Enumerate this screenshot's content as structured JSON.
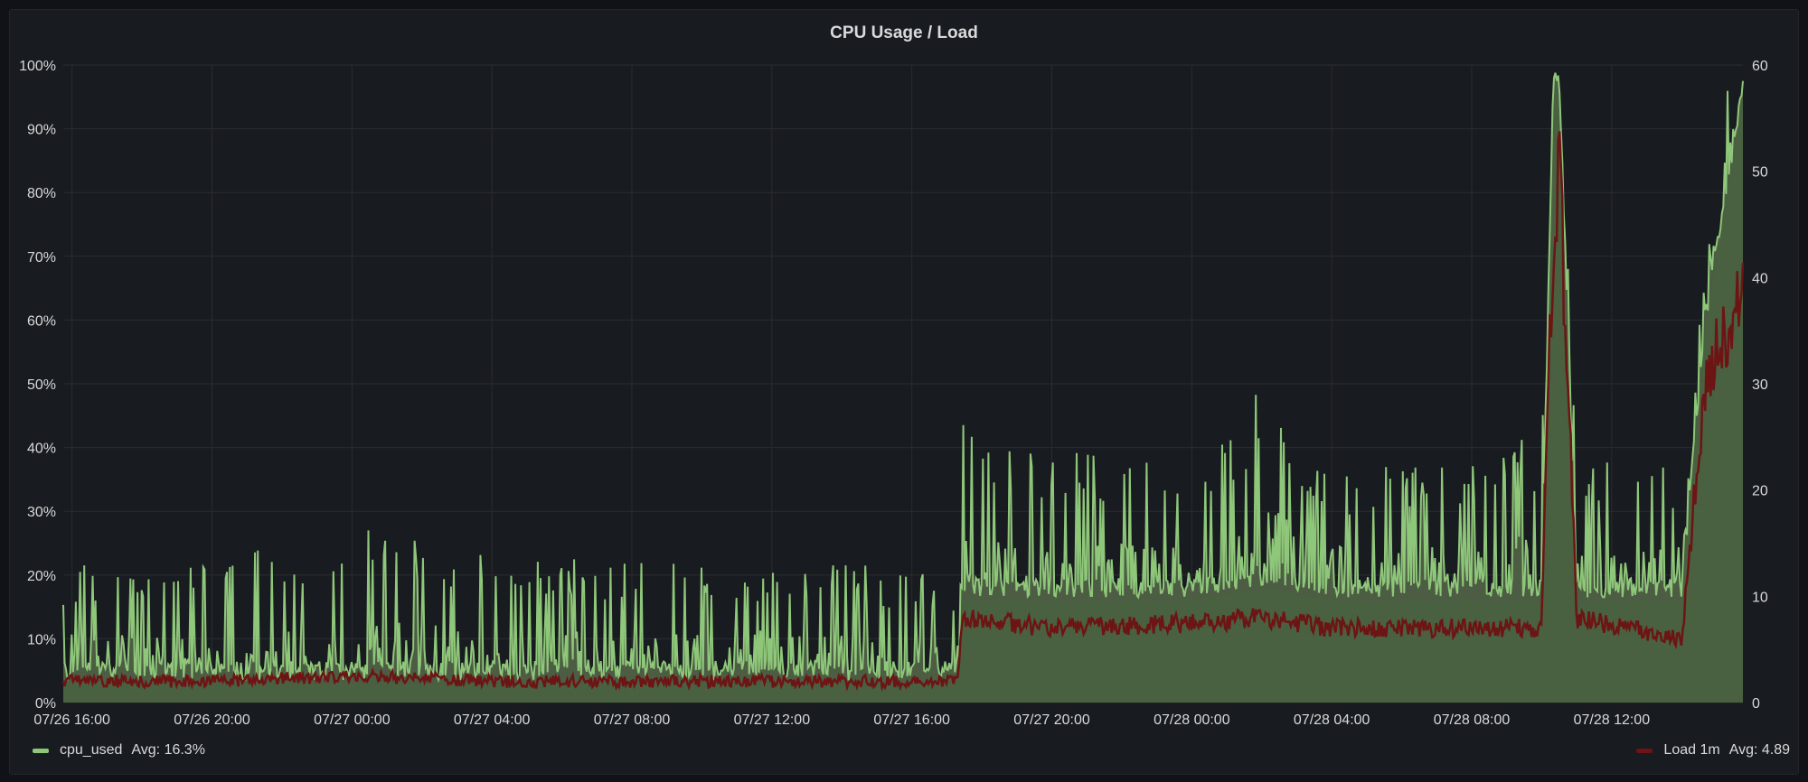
{
  "panel": {
    "title": "CPU Usage / Load"
  },
  "legend": {
    "cpu": {
      "name": "cpu_used",
      "avg_text": "Avg: 16.3%"
    },
    "load": {
      "name": "Load 1m",
      "avg_text": "Avg: 4.89"
    }
  },
  "colors": {
    "background": "#181b1f",
    "cpu_line": "#8fc77a",
    "cpu_fill": "#56694a",
    "cpu_band": "#48643f",
    "load_line": "#6d1414",
    "grid": "#2a2c31",
    "text": "#d8d9da"
  },
  "chart_data": {
    "type": "area",
    "title": "CPU Usage / Load",
    "x_ticks": [
      "07/26 16:00",
      "07/26 20:00",
      "07/27 00:00",
      "07/27 04:00",
      "07/27 08:00",
      "07/27 12:00",
      "07/27 16:00",
      "07/27 20:00",
      "07/28 00:00",
      "07/28 04:00",
      "07/28 08:00",
      "07/28 12:00"
    ],
    "x_range": [
      "07/26 15:45",
      "07/28 15:45"
    ],
    "y_left": {
      "ticks": [
        "0%",
        "10%",
        "20%",
        "30%",
        "40%",
        "50%",
        "60%",
        "70%",
        "80%",
        "90%",
        "100%"
      ],
      "range": [
        0,
        100
      ],
      "unit": "%"
    },
    "y_right": {
      "ticks": [
        "0",
        "10",
        "20",
        "30",
        "40",
        "50",
        "60"
      ],
      "range": [
        0,
        60
      ]
    },
    "grid": true,
    "legend_placement": "bottom",
    "series": [
      {
        "name": "cpu_used",
        "axis": "left",
        "avg": 16.3,
        "x": [
          "07/26 15:45",
          "07/26 20:00",
          "07/27 00:00",
          "07/27 04:00",
          "07/27 08:00",
          "07/27 12:00",
          "07/27 16:00",
          "07/27 17:20",
          "07/27 17:25",
          "07/27 20:00",
          "07/28 00:00",
          "07/28 02:10",
          "07/28 04:00",
          "07/28 08:00",
          "07/28 10:00",
          "07/28 10:20",
          "07/28 10:30",
          "07/28 11:00",
          "07/28 14:00",
          "07/28 14:40",
          "07/28 15:45"
        ],
        "baseline": [
          5,
          5,
          5,
          5,
          5,
          5,
          5,
          5,
          18,
          18,
          18,
          20,
          18,
          18,
          18,
          98,
          98,
          18,
          18,
          60,
          97
        ],
        "peaks": [
          22,
          22,
          29,
          23,
          23,
          23,
          21,
          18,
          44,
          40,
          38,
          51,
          37,
          38,
          43,
          98,
          98,
          40,
          37,
          95,
          97
        ]
      },
      {
        "name": "Load 1m",
        "axis": "right",
        "avg": 4.89,
        "x": [
          "07/26 15:45",
          "07/26 20:00",
          "07/27 00:00",
          "07/27 04:00",
          "07/27 08:00",
          "07/27 12:00",
          "07/27 16:00",
          "07/27 17:20",
          "07/27 17:25",
          "07/27 20:00",
          "07/28 00:00",
          "07/28 02:10",
          "07/28 04:00",
          "07/28 08:00",
          "07/28 10:00",
          "07/28 10:20",
          "07/28 10:30",
          "07/28 11:00",
          "07/28 14:00",
          "07/28 14:40",
          "07/28 15:45"
        ],
        "values": [
          2,
          2,
          2.5,
          2,
          2,
          2,
          2,
          2,
          8,
          7,
          7.5,
          8,
          7,
          7,
          7,
          45,
          51,
          8,
          6,
          30,
          40
        ]
      }
    ]
  }
}
